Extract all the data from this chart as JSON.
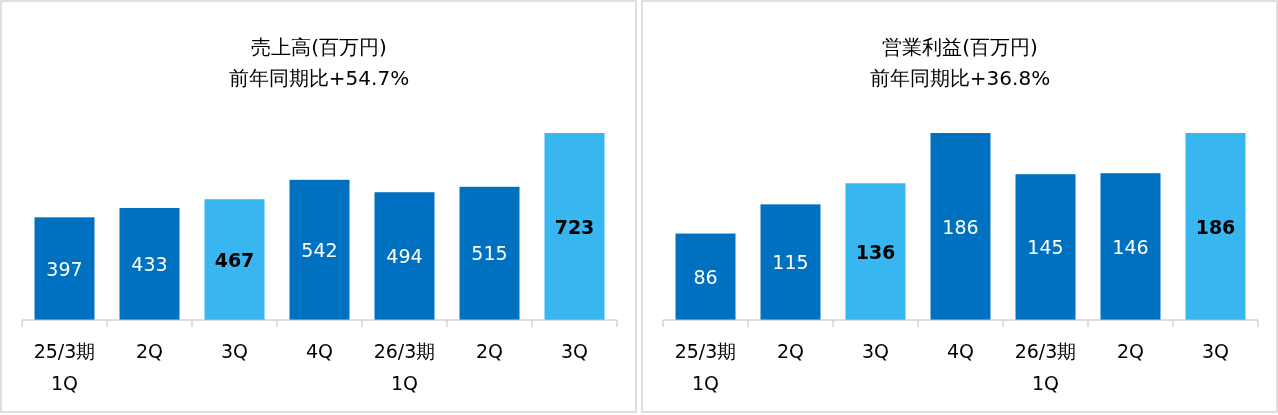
{
  "chart_data": [
    {
      "type": "bar",
      "title": "売上高(百万円)",
      "subtitle": "前年同期比+54.7%",
      "categories": [
        "25/3期\n1Q",
        "2Q",
        "3Q",
        "4Q",
        "26/3期\n1Q",
        "2Q",
        "3Q"
      ],
      "values": [
        397,
        433,
        467,
        542,
        494,
        515,
        723
      ],
      "colors": [
        "#0070c0",
        "#0070c0",
        "#38b6f0",
        "#0070c0",
        "#0070c0",
        "#0070c0",
        "#38b6f0"
      ],
      "data_labels": true
    },
    {
      "type": "bar",
      "title": "営業利益(百万円)",
      "subtitle": "前年同期比+36.8%",
      "categories": [
        "25/3期\n1Q",
        "2Q",
        "3Q",
        "4Q",
        "26/3期\n1Q",
        "2Q",
        "3Q"
      ],
      "values": [
        86,
        115,
        136,
        186,
        145,
        146,
        186
      ],
      "colors": [
        "#0070c0",
        "#0070c0",
        "#38b6f0",
        "#0070c0",
        "#0070c0",
        "#0070c0",
        "#38b6f0"
      ],
      "data_labels": true
    }
  ]
}
